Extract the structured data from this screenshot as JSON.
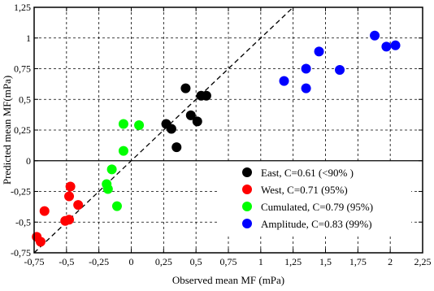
{
  "chart_data": {
    "type": "scatter",
    "xlabel": "Observed mean MF (mPa)",
    "ylabel": "Predicted mean MF(mPa)",
    "xlim": [
      -0.75,
      2.25
    ],
    "ylim": [
      -0.75,
      1.25
    ],
    "x_ticks": [
      -0.75,
      -0.5,
      -0.25,
      0,
      0.25,
      0.5,
      0.75,
      1,
      1.25,
      1.5,
      1.75,
      2,
      2.25
    ],
    "x_tick_labels": [
      "-0,75",
      "-0,5",
      "-0,25",
      "0",
      "0,25",
      "0,5",
      "0,75",
      "1",
      "1,25",
      "1,5",
      "1,75",
      "2",
      "2,25"
    ],
    "y_ticks": [
      -0.75,
      -0.5,
      -0.25,
      0,
      0.25,
      0.5,
      0.75,
      1,
      1.25
    ],
    "y_tick_labels": [
      "-0,75",
      "-0,5",
      "-0,25",
      "0",
      "0,25",
      "0,5",
      "0,75",
      "1",
      "1,25"
    ],
    "grid": true,
    "grid_style": "dashed",
    "reference_line": "y = x (dashed)",
    "legend_position": "bottom-right",
    "series": [
      {
        "name": "East, C=0.61 (<90% )",
        "color": "#000000",
        "points": [
          [
            0.27,
            0.3
          ],
          [
            0.31,
            0.26
          ],
          [
            0.35,
            0.11
          ],
          [
            0.42,
            0.59
          ],
          [
            0.46,
            0.37
          ],
          [
            0.51,
            0.32
          ],
          [
            0.54,
            0.53
          ],
          [
            0.58,
            0.53
          ]
        ]
      },
      {
        "name": "West, C=0.71 (95%)",
        "color": "#ff0000",
        "points": [
          [
            -0.67,
            -0.41
          ],
          [
            -0.73,
            -0.62
          ],
          [
            -0.7,
            -0.66
          ],
          [
            -0.51,
            -0.49
          ],
          [
            -0.48,
            -0.48
          ],
          [
            -0.48,
            -0.29
          ],
          [
            -0.47,
            -0.21
          ],
          [
            -0.41,
            -0.36
          ]
        ]
      },
      {
        "name": "Cumulated, C=0.79 (95%)",
        "color": "#00ff00",
        "points": [
          [
            -0.19,
            -0.19
          ],
          [
            -0.18,
            -0.23
          ],
          [
            -0.15,
            -0.07
          ],
          [
            -0.11,
            -0.37
          ],
          [
            -0.06,
            0.08
          ],
          [
            -0.06,
            0.3
          ],
          [
            0.06,
            0.29
          ]
        ]
      },
      {
        "name": "Amplitude, C=0.83 (99%)",
        "color": "#0000ff",
        "points": [
          [
            1.18,
            0.65
          ],
          [
            1.35,
            0.75
          ],
          [
            1.35,
            0.59
          ],
          [
            1.45,
            0.89
          ],
          [
            1.61,
            0.74
          ],
          [
            1.88,
            1.02
          ],
          [
            1.97,
            0.93
          ],
          [
            2.04,
            0.94
          ]
        ]
      }
    ]
  }
}
